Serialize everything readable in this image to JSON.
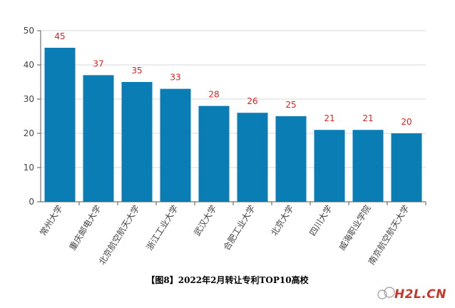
{
  "chart_data": {
    "type": "bar",
    "categories": [
      "常州大学",
      "重庆邮电大学",
      "北京航空航天大学",
      "浙江工业大学",
      "武汉大学",
      "合肥工业大学",
      "北京大学",
      "四川大学",
      "威海职业学院",
      "南京航空航天大学"
    ],
    "values": [
      45,
      37,
      35,
      33,
      28,
      26,
      25,
      21,
      21,
      20
    ],
    "ylim": [
      0,
      50
    ],
    "yticks": [
      0,
      10,
      20,
      30,
      40,
      50
    ],
    "grid": true,
    "colors": {
      "bar": "#0a7db4",
      "label": "#e02020",
      "grid": "#d9d9d9",
      "axis": "#555555",
      "text": "#444444"
    }
  },
  "caption": "【图8】2022年2月转让专利TOP10高校",
  "watermark": {
    "brand": "H2L.CN"
  }
}
